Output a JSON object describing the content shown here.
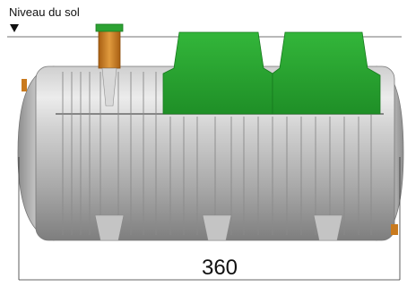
{
  "labels": {
    "ground_level": "Niveau du sol",
    "length_dimension": "360"
  },
  "colors": {
    "tank_body": "#a9a9a9",
    "tank_highlight": "#e2e2e2",
    "riser_green": "#23a52c",
    "inlet_pipe": "#c97a1e",
    "rib_line": "#7d7d7d"
  }
}
